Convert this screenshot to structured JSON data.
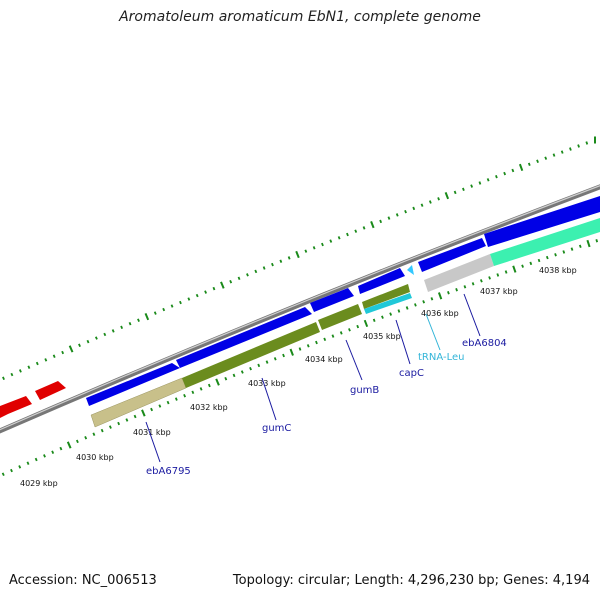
{
  "title": "Aromatoleum aromaticum EbN1, complete genome",
  "footer": {
    "accession": "Accession: NC_006513",
    "summary": "Topology: circular; Length: 4,296,230 bp; Genes: 4,194"
  },
  "colors": {
    "backbone": "#8c8c8c",
    "cds_forward": "#0000e0",
    "cds_reverse_upstream": "#d00000",
    "trna": "#33c8ff",
    "gc_olive": "#6b8c1e",
    "gc_light": "#c8c08a",
    "gc_mint": "#3cf0b0",
    "gc_cyan": "#20c8d8",
    "gc_gray": "#c8c8c8",
    "tick_dots": "#1a8a1a"
  },
  "scale_labels": [
    "4029 kbp",
    "4030 kbp",
    "4031 kbp",
    "4032 kbp",
    "4033 kbp",
    "4034 kbp",
    "4035 kbp",
    "4036 kbp",
    "4037 kbp",
    "4038 kbp"
  ],
  "gene_labels": [
    "ebA6795",
    "gumC",
    "gumB",
    "capC",
    "tRNA-Leu",
    "ebA6804"
  ]
}
